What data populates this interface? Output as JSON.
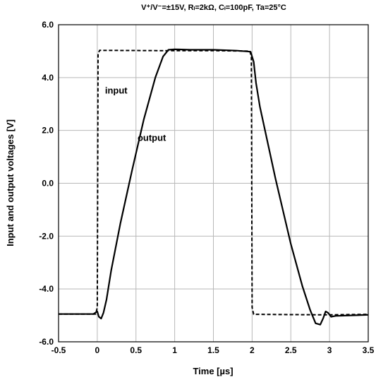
{
  "chart_data": {
    "type": "line",
    "subtitle": "V⁺/V⁻=±15V, Rₗ=2kΩ, Cₗ=100pF, Ta=25°C",
    "xlabel": "Time [µs]",
    "ylabel": "Input and output voltages [V]",
    "xlim": [
      -0.5,
      3.5
    ],
    "ylim": [
      -6.0,
      6.0
    ],
    "x_ticks": [
      -0.5,
      0,
      0.5,
      1,
      1.5,
      2,
      2.5,
      3,
      3.5
    ],
    "x_tick_labels": [
      "-0.5",
      "0",
      "0.5",
      "1",
      "1.5",
      "2",
      "2.5",
      "3",
      "3.5"
    ],
    "y_ticks": [
      6.0,
      4.0,
      2.0,
      0.0,
      -2.0,
      -4.0,
      -6.0
    ],
    "y_tick_labels": [
      "6.0",
      "4.0",
      "2.0",
      "0.0",
      "-2.0",
      "-4.0",
      "-6.0"
    ],
    "grid": true,
    "annotations": [
      {
        "text": "input",
        "x": 0.1,
        "y": 3.4
      },
      {
        "text": "output",
        "x": 0.52,
        "y": 1.6
      }
    ],
    "series": [
      {
        "name": "input",
        "style": "dashed",
        "color": "#000000",
        "x": [
          -0.5,
          -0.02,
          0.0,
          0.01,
          0.03,
          0.8,
          1.5,
          1.97,
          1.99,
          2.0,
          2.02,
          2.5,
          3.0,
          3.5
        ],
        "y": [
          -4.95,
          -4.95,
          -4.7,
          4.9,
          5.03,
          5.02,
          5.02,
          5.0,
          4.8,
          -4.7,
          -4.96,
          -4.97,
          -4.98,
          -4.96
        ]
      },
      {
        "name": "output",
        "style": "solid",
        "color": "#000000",
        "x": [
          -0.5,
          -0.05,
          0.0,
          0.02,
          0.05,
          0.08,
          0.12,
          0.18,
          0.3,
          0.45,
          0.6,
          0.75,
          0.85,
          0.92,
          1.0,
          1.2,
          1.5,
          1.8,
          1.98,
          2.02,
          2.05,
          2.1,
          2.3,
          2.5,
          2.65,
          2.75,
          2.82,
          2.88,
          2.92,
          2.95,
          2.98,
          3.02,
          3.08,
          3.5
        ],
        "y": [
          -4.95,
          -4.95,
          -4.85,
          -5.05,
          -5.12,
          -4.9,
          -4.4,
          -3.3,
          -1.5,
          0.5,
          2.4,
          4.0,
          4.8,
          5.05,
          5.07,
          5.05,
          5.05,
          5.02,
          4.98,
          4.6,
          3.8,
          2.9,
          0.2,
          -2.3,
          -3.9,
          -4.8,
          -5.3,
          -5.35,
          -5.1,
          -4.85,
          -4.9,
          -5.05,
          -5.02,
          -4.98
        ]
      }
    ]
  }
}
